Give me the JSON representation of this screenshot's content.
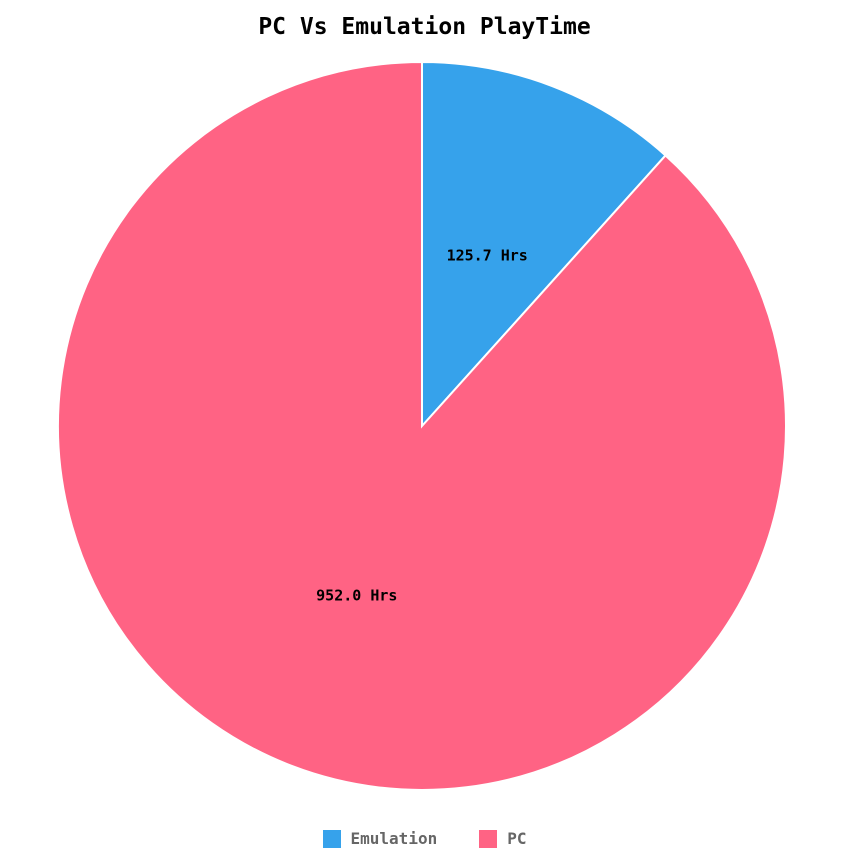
{
  "chart_data": {
    "type": "pie",
    "title": "PC Vs Emulation PlayTime",
    "slices": [
      {
        "name": "Emulation",
        "value": 125.7,
        "label": "125.7 Hrs",
        "color": "#36A2EB"
      },
      {
        "name": "PC",
        "value": 952.0,
        "label": "952.0 Hrs",
        "color": "#FF6384"
      }
    ],
    "legend_position": "bottom",
    "start_angle": "top, clockwise"
  }
}
